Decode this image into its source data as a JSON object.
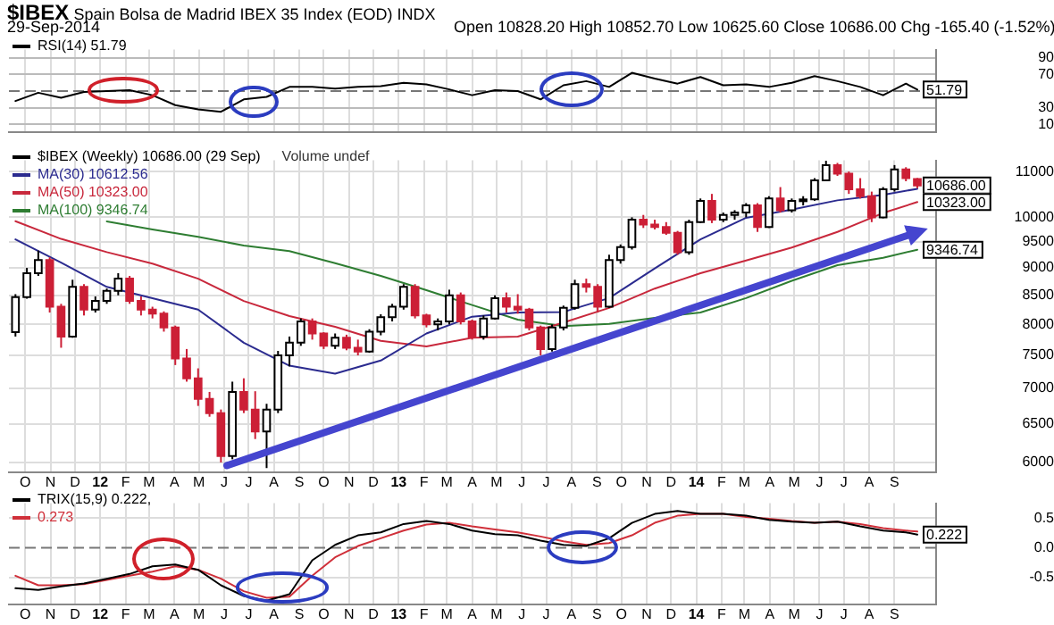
{
  "chart_data": [
    {
      "type": "line",
      "title": "$IBEX Spain Bolsa de Madrid IBEX 35 Index (EOD) INDX",
      "subtitle": "29-Sep-2014",
      "annotations": [
        "Open 10828.20 High 10852.70 Low 10625.60 Close 10686.00 Chg -165.40 (-1.52%)",
        {
          "text": "51.79",
          "x": "2014-09-29",
          "y": 51.79
        }
      ],
      "x": [
        "2011-09-19",
        "2011-10-17",
        "2011-11-14",
        "2011-12-12",
        "2012-01-09",
        "2012-02-06",
        "2012-03-05",
        "2012-04-02",
        "2012-04-30",
        "2012-05-28",
        "2012-06-25",
        "2012-07-23",
        "2012-08-20",
        "2012-09-17",
        "2012-10-15",
        "2012-11-12",
        "2012-12-10",
        "2013-01-07",
        "2013-02-04",
        "2013-03-04",
        "2013-04-01",
        "2013-04-29",
        "2013-05-27",
        "2013-06-24",
        "2013-07-22",
        "2013-08-19",
        "2013-09-16",
        "2013-10-14",
        "2013-11-11",
        "2013-12-09",
        "2014-01-06",
        "2014-02-03",
        "2014-03-03",
        "2014-03-31",
        "2014-04-28",
        "2014-05-26",
        "2014-06-23",
        "2014-07-21",
        "2014-08-18",
        "2014-09-15",
        "2014-09-29"
      ],
      "series": [
        {
          "name": "RSI(14) 51.79",
          "color": "#000000",
          "values": [
            38,
            48,
            42,
            49,
            50,
            51,
            45,
            33,
            28,
            25,
            40,
            43,
            55,
            55,
            53,
            55,
            56,
            60,
            58,
            52,
            45,
            51,
            50,
            40,
            57,
            62,
            55,
            72,
            65,
            59,
            67,
            57,
            58,
            55,
            60,
            68,
            62,
            55,
            45,
            59,
            51.79
          ]
        }
      ],
      "xlim": [
        "2011-09-11",
        "2014-10-22"
      ],
      "ylim": [
        0,
        100
      ],
      "yticks": [
        10,
        30,
        70,
        90
      ],
      "xticks": [
        {
          "value": "2011-10-01",
          "label": null
        },
        {
          "value": "2011-11-01",
          "label": null
        },
        {
          "value": "2011-12-01",
          "label": null
        },
        {
          "value": "2012-01-01",
          "label": null
        },
        {
          "value": "2012-02-01",
          "label": null
        },
        {
          "value": "2012-03-01",
          "label": null
        },
        {
          "value": "2012-04-01",
          "label": null
        },
        {
          "value": "2012-05-01",
          "label": null
        },
        {
          "value": "2012-06-01",
          "label": null
        },
        {
          "value": "2012-07-01",
          "label": null
        },
        {
          "value": "2012-08-01",
          "label": null
        },
        {
          "value": "2012-09-01",
          "label": null
        },
        {
          "value": "2012-10-01",
          "label": null
        },
        {
          "value": "2012-11-01",
          "label": null
        },
        {
          "value": "2012-12-01",
          "label": null
        },
        {
          "value": "2013-01-01",
          "label": null
        },
        {
          "value": "2013-02-01",
          "label": null
        },
        {
          "value": "2013-03-01",
          "label": null
        },
        {
          "value": "2013-04-01",
          "label": null
        },
        {
          "value": "2013-05-01",
          "label": null
        },
        {
          "value": "2013-06-01",
          "label": null
        },
        {
          "value": "2013-07-01",
          "label": null
        },
        {
          "value": "2013-08-01",
          "label": null
        },
        {
          "value": "2013-09-01",
          "label": null
        },
        {
          "value": "2013-10-01",
          "label": null
        },
        {
          "value": "2013-11-01",
          "label": null
        },
        {
          "value": "2013-12-01",
          "label": null
        },
        {
          "value": "2014-01-01",
          "label": null
        },
        {
          "value": "2014-02-01",
          "label": null
        },
        {
          "value": "2014-03-01",
          "label": null
        },
        {
          "value": "2014-04-01",
          "label": null
        },
        {
          "value": "2014-05-01",
          "label": null
        },
        {
          "value": "2014-06-01",
          "label": null
        },
        {
          "value": "2014-07-01",
          "label": null
        },
        {
          "value": "2014-08-01",
          "label": null
        },
        {
          "value": "2014-09-01",
          "label": null
        }
      ],
      "ref_lines": [
        {
          "axis": "y",
          "value": 50,
          "color": "#777777",
          "line_style": "dashed"
        }
      ],
      "grid": true,
      "legend": "top left",
      "tick_labels": "y"
    },
    {
      "type": "candlestick",
      "log": true,
      "annotations": [
        "Volume undef",
        {
          "text": "10686.00",
          "x": "2014-09-29",
          "y": 10686
        },
        {
          "text": "10323.00",
          "x": "2014-09-29",
          "y": 10323
        },
        {
          "text": "9346.74",
          "x": "2014-09-29",
          "y": 9346.74
        }
      ],
      "x": [
        "2011-09-19",
        "2011-10-03",
        "2011-10-17",
        "2011-10-31",
        "2011-11-14",
        "2011-11-28",
        "2011-12-12",
        "2011-12-26",
        "2012-01-09",
        "2012-01-23",
        "2012-02-06",
        "2012-02-20",
        "2012-03-05",
        "2012-03-19",
        "2012-04-02",
        "2012-04-16",
        "2012-04-30",
        "2012-05-14",
        "2012-05-28",
        "2012-06-11",
        "2012-06-25",
        "2012-07-09",
        "2012-07-23",
        "2012-08-06",
        "2012-08-20",
        "2012-09-03",
        "2012-09-17",
        "2012-10-01",
        "2012-10-15",
        "2012-10-29",
        "2012-11-12",
        "2012-11-26",
        "2012-12-10",
        "2012-12-24",
        "2013-01-07",
        "2013-01-21",
        "2013-02-04",
        "2013-02-18",
        "2013-03-04",
        "2013-03-18",
        "2013-04-01",
        "2013-04-15",
        "2013-04-29",
        "2013-05-13",
        "2013-05-27",
        "2013-06-10",
        "2013-06-24",
        "2013-07-08",
        "2013-07-22",
        "2013-08-05",
        "2013-08-19",
        "2013-09-02",
        "2013-09-16",
        "2013-09-30",
        "2013-10-14",
        "2013-10-28",
        "2013-11-11",
        "2013-11-25",
        "2013-12-09",
        "2013-12-23",
        "2014-01-06",
        "2014-01-20",
        "2014-02-03",
        "2014-02-17",
        "2014-03-03",
        "2014-03-17",
        "2014-03-31",
        "2014-04-14",
        "2014-04-28",
        "2014-05-12",
        "2014-05-26",
        "2014-06-09",
        "2014-06-23",
        "2014-07-07",
        "2014-07-21",
        "2014-08-04",
        "2014-08-18",
        "2014-09-01",
        "2014-09-15",
        "2014-09-29"
      ],
      "series": [
        {
          "name": "$IBEX (Weekly) 10686.00 (29 Sep)",
          "colors": [
            "#ffffff",
            "#ffffff",
            "#ffffff",
            "#cc1f36",
            "#cc1f36",
            "#ffffff",
            "#cc1f36",
            "#ffffff",
            "#ffffff",
            "#ffffff",
            "#cc1f36",
            "#cc1f36",
            "#cc1f36",
            "#cc1f36",
            "#cc1f36",
            "#cc1f36",
            "#cc1f36",
            "#cc1f36",
            "#cc1f36",
            "#ffffff",
            "#cc1f36",
            "#cc1f36",
            "#ffffff",
            "#ffffff",
            "#ffffff",
            "#ffffff",
            "#cc1f36",
            "#cc1f36",
            "#ffffff",
            "#cc1f36",
            "#cc1f36",
            "#ffffff",
            "#ffffff",
            "#ffffff",
            "#ffffff",
            "#cc1f36",
            "#cc1f36",
            "#ffffff",
            "#ffffff",
            "#cc1f36",
            "#cc1f36",
            "#ffffff",
            "#ffffff",
            "#cc1f36",
            "#cc1f36",
            "#cc1f36",
            "#cc1f36",
            "#ffffff",
            "#ffffff",
            "#ffffff",
            "#cc1f36",
            "#cc1f36",
            "#ffffff",
            "#ffffff",
            "#ffffff",
            "#cc1f36",
            "#cc1f36",
            "#cc1f36",
            "#cc1f36",
            "#ffffff",
            "#ffffff",
            "#cc1f36",
            "#ffffff",
            "#ffffff",
            "#ffffff",
            "#cc1f36",
            "#ffffff",
            "#cc1f36",
            "#ffffff",
            "#ffffff",
            "#ffffff",
            "#ffffff",
            "#cc1f36",
            "#cc1f36",
            "#cc1f36",
            "#cc1f36",
            "#ffffff",
            "#ffffff",
            "#cc1f36",
            "#cc1f36"
          ],
          "ohlc": [
            [
              7870,
              8520,
              7800,
              8470
            ],
            [
              8470,
              9000,
              8440,
              8900
            ],
            [
              8900,
              9330,
              8850,
              9150
            ],
            [
              9150,
              9200,
              8200,
              8300
            ],
            [
              8300,
              8350,
              7620,
              7800
            ],
            [
              7800,
              8780,
              7780,
              8650
            ],
            [
              8650,
              8700,
              8150,
              8250
            ],
            [
              8250,
              8480,
              8200,
              8400
            ],
            [
              8400,
              8620,
              8350,
              8580
            ],
            [
              8580,
              8900,
              8500,
              8800
            ],
            [
              8800,
              8850,
              8350,
              8400
            ],
            [
              8400,
              8480,
              8150,
              8250
            ],
            [
              8250,
              8300,
              8100,
              8180
            ],
            [
              8180,
              8220,
              7880,
              7950
            ],
            [
              7950,
              7980,
              7350,
              7450
            ],
            [
              7450,
              7600,
              7100,
              7150
            ],
            [
              7150,
              7300,
              6750,
              6850
            ],
            [
              6850,
              6950,
              6600,
              6650
            ],
            [
              6650,
              6700,
              6000,
              6080
            ],
            [
              6080,
              7100,
              6040,
              6950
            ],
            [
              6950,
              7150,
              6650,
              6700
            ],
            [
              6700,
              6960,
              6300,
              6400
            ],
            [
              6400,
              6780,
              5930,
              6700
            ],
            [
              6700,
              7570,
              6650,
              7500
            ],
            [
              7500,
              7800,
              7330,
              7700
            ],
            [
              7700,
              8100,
              7650,
              8050
            ],
            [
              8050,
              8100,
              7750,
              7850
            ],
            [
              7850,
              7870,
              7600,
              7650
            ],
            [
              7650,
              7850,
              7600,
              7780
            ],
            [
              7780,
              7830,
              7580,
              7620
            ],
            [
              7620,
              7750,
              7500,
              7560
            ],
            [
              7560,
              7920,
              7540,
              7880
            ],
            [
              7880,
              8170,
              7820,
              8120
            ],
            [
              8120,
              8350,
              8050,
              8300
            ],
            [
              8300,
              8700,
              8250,
              8650
            ],
            [
              8650,
              8700,
              8100,
              8150
            ],
            [
              8150,
              8180,
              7950,
              8000
            ],
            [
              8000,
              8100,
              7900,
              8050
            ],
            [
              8050,
              8600,
              8000,
              8500
            ],
            [
              8500,
              8550,
              8000,
              8050
            ],
            [
              8050,
              8080,
              7750,
              7800
            ],
            [
              7800,
              8150,
              7750,
              8100
            ],
            [
              8100,
              8500,
              8080,
              8450
            ],
            [
              8450,
              8550,
              8200,
              8300
            ],
            [
              8300,
              8520,
              8180,
              8250
            ],
            [
              8250,
              8280,
              7900,
              7950
            ],
            [
              7950,
              7980,
              7500,
              7600
            ],
            [
              7600,
              8000,
              7560,
              7950
            ],
            [
              7950,
              8320,
              7900,
              8280
            ],
            [
              8280,
              8780,
              8250,
              8700
            ],
            [
              8700,
              8800,
              8550,
              8650
            ],
            [
              8650,
              8700,
              8200,
              8300
            ],
            [
              8300,
              9250,
              8280,
              9150
            ],
            [
              9150,
              9450,
              9080,
              9400
            ],
            [
              9400,
              10000,
              9350,
              9950
            ],
            [
              9950,
              10050,
              9780,
              9850
            ],
            [
              9850,
              9950,
              9750,
              9800
            ],
            [
              9800,
              9900,
              9640,
              9680
            ],
            [
              9680,
              9720,
              9250,
              9300
            ],
            [
              9300,
              9950,
              9250,
              9900
            ],
            [
              9900,
              10400,
              9880,
              10350
            ],
            [
              10350,
              10500,
              9880,
              9950
            ],
            [
              9950,
              10100,
              9900,
              10050
            ],
            [
              10050,
              10150,
              9950,
              10100
            ],
            [
              10100,
              10300,
              10000,
              10250
            ],
            [
              10250,
              10300,
              9700,
              9800
            ],
            [
              9800,
              10450,
              9780,
              10400
            ],
            [
              10400,
              10650,
              10100,
              10150
            ],
            [
              10150,
              10400,
              10100,
              10350
            ],
            [
              10350,
              10450,
              10250,
              10380
            ],
            [
              10380,
              10850,
              10350,
              10800
            ],
            [
              10800,
              11250,
              10780,
              11150
            ],
            [
              11150,
              11200,
              10900,
              10950
            ],
            [
              10950,
              11000,
              10500,
              10600
            ],
            [
              10600,
              10850,
              10400,
              10450
            ],
            [
              10450,
              10550,
              9900,
              10000
            ],
            [
              10000,
              10650,
              9980,
              10600
            ],
            [
              10600,
              11150,
              10550,
              11050
            ],
            [
              11050,
              11100,
              10780,
              10850
            ],
            [
              10828.2,
              10852.7,
              10625.6,
              10686
            ]
          ]
        },
        {
          "type": "line",
          "name": "MA(30) 10612.56",
          "color": "#2b2b8f",
          "x": [
            "2011-09-19",
            "2011-11-14",
            "2012-01-09",
            "2012-03-05",
            "2012-04-30",
            "2012-06-25",
            "2012-08-20",
            "2012-10-15",
            "2012-12-10",
            "2013-02-04",
            "2013-04-01",
            "2013-05-27",
            "2013-07-22",
            "2013-09-16",
            "2013-11-11",
            "2014-01-06",
            "2014-03-03",
            "2014-04-28",
            "2014-06-23",
            "2014-08-18",
            "2014-09-29"
          ],
          "values": [
            9550,
            9100,
            8650,
            8450,
            8250,
            7700,
            7340,
            7220,
            7420,
            7850,
            8130,
            8200,
            8210,
            8450,
            8990,
            9550,
            9990,
            10160,
            10360,
            10480,
            10612.56
          ]
        },
        {
          "type": "line",
          "name": "MA(50) 10323.00",
          "color": "#c8283c",
          "x": [
            "2011-09-19",
            "2011-11-14",
            "2012-01-09",
            "2012-03-05",
            "2012-04-30",
            "2012-06-25",
            "2012-08-20",
            "2012-10-15",
            "2012-12-10",
            "2013-02-04",
            "2013-04-01",
            "2013-05-27",
            "2013-07-22",
            "2013-09-16",
            "2013-11-11",
            "2014-01-06",
            "2014-03-03",
            "2014-04-28",
            "2014-06-23",
            "2014-08-18",
            "2014-09-29"
          ],
          "values": [
            9920,
            9560,
            9300,
            9080,
            8800,
            8400,
            8140,
            7960,
            7730,
            7640,
            7780,
            7800,
            8030,
            8280,
            8620,
            8900,
            9140,
            9390,
            9700,
            10090,
            10323
          ]
        },
        {
          "type": "line",
          "name": "MA(100) 9346.74",
          "color": "#2e7d32",
          "x": [
            "2012-01-09",
            "2012-03-05",
            "2012-04-30",
            "2012-06-25",
            "2012-08-20",
            "2012-10-15",
            "2012-12-10",
            "2013-02-04",
            "2013-04-01",
            "2013-05-27",
            "2013-07-22",
            "2013-09-16",
            "2013-11-11",
            "2014-01-06",
            "2014-03-03",
            "2014-04-28",
            "2014-06-23",
            "2014-08-18",
            "2014-09-29"
          ],
          "values": [
            9915,
            9750,
            9600,
            9430,
            9320,
            9090,
            8850,
            8590,
            8330,
            8080,
            7970,
            8010,
            8110,
            8200,
            8450,
            8760,
            9050,
            9190,
            9346.74
          ]
        }
      ],
      "xlim": [
        "2011-09-11",
        "2014-10-22"
      ],
      "ylim": [
        5880,
        11260
      ],
      "yticks": [
        6000,
        6500,
        7000,
        7500,
        8000,
        8500,
        9000,
        9500,
        10000,
        11000
      ],
      "xticks": [
        {
          "value": "2011-10-01",
          "label": "O"
        },
        {
          "value": "2011-11-01",
          "label": "N"
        },
        {
          "value": "2011-12-01",
          "label": "D"
        },
        {
          "value": "2012-01-01",
          "label": "12"
        },
        {
          "value": "2012-02-01",
          "label": "F"
        },
        {
          "value": "2012-03-01",
          "label": "M"
        },
        {
          "value": "2012-04-01",
          "label": "A"
        },
        {
          "value": "2012-05-01",
          "label": "M"
        },
        {
          "value": "2012-06-01",
          "label": "J"
        },
        {
          "value": "2012-07-01",
          "label": "J"
        },
        {
          "value": "2012-08-01",
          "label": "A"
        },
        {
          "value": "2012-09-01",
          "label": "S"
        },
        {
          "value": "2012-10-01",
          "label": "O"
        },
        {
          "value": "2012-11-01",
          "label": "N"
        },
        {
          "value": "2012-12-01",
          "label": "D"
        },
        {
          "value": "2013-01-01",
          "label": "13"
        },
        {
          "value": "2013-02-01",
          "label": "F"
        },
        {
          "value": "2013-03-01",
          "label": "M"
        },
        {
          "value": "2013-04-01",
          "label": "A"
        },
        {
          "value": "2013-05-01",
          "label": "M"
        },
        {
          "value": "2013-06-01",
          "label": "J"
        },
        {
          "value": "2013-07-01",
          "label": "J"
        },
        {
          "value": "2013-08-01",
          "label": "A"
        },
        {
          "value": "2013-09-01",
          "label": "S"
        },
        {
          "value": "2013-10-01",
          "label": "O"
        },
        {
          "value": "2013-11-01",
          "label": "N"
        },
        {
          "value": "2013-12-01",
          "label": "D"
        },
        {
          "value": "2014-01-01",
          "label": "14"
        },
        {
          "value": "2014-02-01",
          "label": "F"
        },
        {
          "value": "2014-03-01",
          "label": "M"
        },
        {
          "value": "2014-04-01",
          "label": "A"
        },
        {
          "value": "2014-05-01",
          "label": "M"
        },
        {
          "value": "2014-06-01",
          "label": "J"
        },
        {
          "value": "2014-07-01",
          "label": "J"
        },
        {
          "value": "2014-08-01",
          "label": "A"
        },
        {
          "value": "2014-09-01",
          "label": "S"
        }
      ],
      "grid": true,
      "legend": "top left"
    },
    {
      "type": "line",
      "annotations": [
        {
          "text": "0.222",
          "x": "2014-09-29",
          "y": 0.222
        }
      ],
      "x": [
        "2011-09-19",
        "2011-10-17",
        "2011-11-14",
        "2011-12-12",
        "2012-01-09",
        "2012-02-06",
        "2012-03-05",
        "2012-04-02",
        "2012-04-30",
        "2012-05-28",
        "2012-06-25",
        "2012-07-23",
        "2012-08-20",
        "2012-09-17",
        "2012-10-15",
        "2012-11-12",
        "2012-12-10",
        "2013-01-07",
        "2013-02-04",
        "2013-03-04",
        "2013-04-01",
        "2013-04-29",
        "2013-05-27",
        "2013-06-24",
        "2013-07-22",
        "2013-08-19",
        "2013-09-16",
        "2013-10-14",
        "2013-11-11",
        "2013-12-09",
        "2014-01-06",
        "2014-02-03",
        "2014-03-03",
        "2014-03-31",
        "2014-04-28",
        "2014-05-26",
        "2014-06-23",
        "2014-07-21",
        "2014-08-18",
        "2014-09-15",
        "2014-09-29"
      ],
      "series": [
        {
          "name": "TRIX(15,9) 0.222,",
          "color": "#000000",
          "values": [
            -0.68,
            -0.71,
            -0.65,
            -0.6,
            -0.52,
            -0.44,
            -0.31,
            -0.28,
            -0.37,
            -0.63,
            -0.81,
            -0.89,
            -0.78,
            -0.21,
            0.05,
            0.21,
            0.26,
            0.4,
            0.45,
            0.4,
            0.29,
            0.23,
            0.21,
            0.12,
            0.05,
            0.03,
            0.16,
            0.42,
            0.57,
            0.62,
            0.57,
            0.57,
            0.54,
            0.47,
            0.44,
            0.42,
            0.44,
            0.36,
            0.29,
            0.26,
            0.222
          ]
        },
        {
          "name": "0.273",
          "color": "#d0303a",
          "values": [
            -0.47,
            -0.63,
            -0.63,
            -0.61,
            -0.54,
            -0.47,
            -0.4,
            -0.31,
            -0.37,
            -0.52,
            -0.73,
            -0.84,
            -0.82,
            -0.47,
            -0.16,
            0.03,
            0.16,
            0.29,
            0.39,
            0.42,
            0.36,
            0.31,
            0.26,
            0.19,
            0.11,
            0.05,
            0.08,
            0.21,
            0.42,
            0.54,
            0.57,
            0.57,
            0.52,
            0.49,
            0.45,
            0.42,
            0.44,
            0.4,
            0.33,
            0.29,
            0.273
          ]
        }
      ],
      "xlim": [
        "2011-09-11",
        "2014-10-22"
      ],
      "ylim": [
        -0.95,
        0.75
      ],
      "yticks": [
        {
          "value": 0.5,
          "label": "0.5"
        },
        {
          "value": 0,
          "label": "0.0"
        },
        {
          "value": -0.5,
          "label": "-0.5"
        }
      ],
      "xticks": [
        {
          "value": "2011-10-01",
          "label": "O"
        },
        {
          "value": "2011-11-01",
          "label": "N"
        },
        {
          "value": "2011-12-01",
          "label": "D"
        },
        {
          "value": "2012-01-01",
          "label": "12"
        },
        {
          "value": "2012-02-01",
          "label": "F"
        },
        {
          "value": "2012-03-01",
          "label": "M"
        },
        {
          "value": "2012-04-01",
          "label": "A"
        },
        {
          "value": "2012-05-01",
          "label": "M"
        },
        {
          "value": "2012-06-01",
          "label": "J"
        },
        {
          "value": "2012-07-01",
          "label": "J"
        },
        {
          "value": "2012-08-01",
          "label": "A"
        },
        {
          "value": "2012-09-01",
          "label": "S"
        },
        {
          "value": "2012-10-01",
          "label": "O"
        },
        {
          "value": "2012-11-01",
          "label": "N"
        },
        {
          "value": "2012-12-01",
          "label": "D"
        },
        {
          "value": "2013-01-01",
          "label": "13"
        },
        {
          "value": "2013-02-01",
          "label": "F"
        },
        {
          "value": "2013-03-01",
          "label": "M"
        },
        {
          "value": "2013-04-01",
          "label": "A"
        },
        {
          "value": "2013-05-01",
          "label": "M"
        },
        {
          "value": "2013-06-01",
          "label": "J"
        },
        {
          "value": "2013-07-01",
          "label": "J"
        },
        {
          "value": "2013-08-01",
          "label": "A"
        },
        {
          "value": "2013-09-01",
          "label": "S"
        },
        {
          "value": "2013-10-01",
          "label": "O"
        },
        {
          "value": "2013-11-01",
          "label": "N"
        },
        {
          "value": "2013-12-01",
          "label": "D"
        },
        {
          "value": "2014-01-01",
          "label": "14"
        },
        {
          "value": "2014-02-01",
          "label": "F"
        },
        {
          "value": "2014-03-01",
          "label": "M"
        },
        {
          "value": "2014-04-01",
          "label": "A"
        },
        {
          "value": "2014-05-01",
          "label": "M"
        },
        {
          "value": "2014-06-01",
          "label": "J"
        },
        {
          "value": "2014-07-01",
          "label": "J"
        },
        {
          "value": "2014-08-01",
          "label": "A"
        },
        {
          "value": "2014-09-01",
          "label": "S"
        }
      ],
      "ref_lines": [
        {
          "axis": "y",
          "value": 0,
          "color": "#777777",
          "line_style": "dashed"
        }
      ],
      "grid": true,
      "legend": "top left"
    }
  ]
}
